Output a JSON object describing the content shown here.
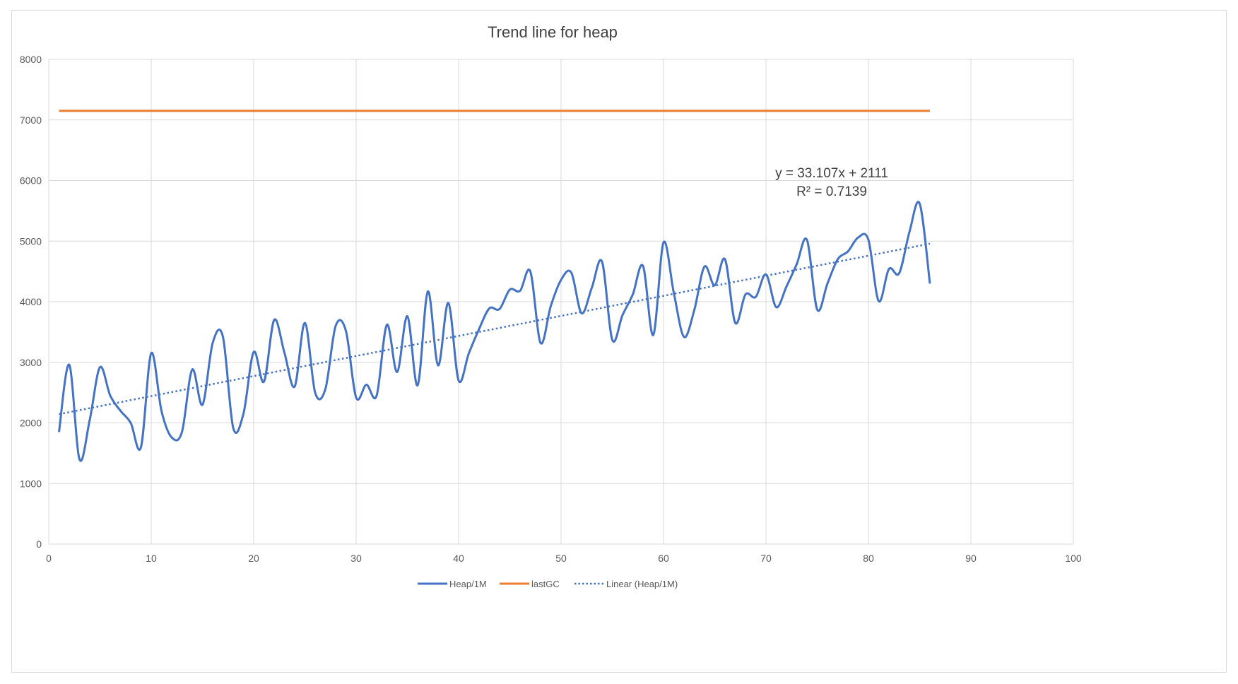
{
  "chart_data": {
    "type": "line",
    "title": "Trend line for heap",
    "xlabel": "",
    "ylabel": "",
    "xlim": [
      0,
      100
    ],
    "ylim": [
      0,
      8000
    ],
    "x_ticks": [
      0,
      10,
      20,
      30,
      40,
      50,
      60,
      70,
      80,
      90,
      100
    ],
    "y_ticks": [
      0,
      1000,
      2000,
      3000,
      4000,
      5000,
      6000,
      7000,
      8000
    ],
    "grid": true,
    "legend_position": "bottom",
    "colors": {
      "heap": "#4472c4",
      "lastgc": "#ed7d31",
      "linear": "#4472c4",
      "grid": "#d9d9d9"
    },
    "series": [
      {
        "name": "Heap/1M",
        "style": "smooth",
        "x": [
          1,
          2,
          3,
          4,
          5,
          6,
          7,
          8,
          9,
          10,
          11,
          12,
          13,
          14,
          15,
          16,
          17,
          18,
          19,
          20,
          21,
          22,
          23,
          24,
          25,
          26,
          27,
          28,
          29,
          30,
          31,
          32,
          33,
          34,
          35,
          36,
          37,
          38,
          39,
          40,
          41,
          42,
          43,
          44,
          45,
          46,
          47,
          48,
          49,
          50,
          51,
          52,
          53,
          54,
          55,
          56,
          57,
          58,
          59,
          60,
          61,
          62,
          63,
          64,
          65,
          66,
          67,
          68,
          69,
          70,
          71,
          72,
          73,
          74,
          75,
          76,
          77,
          78,
          79,
          80,
          81,
          82,
          83,
          84,
          85,
          86
        ],
        "y": [
          1850,
          2960,
          1400,
          2050,
          2920,
          2450,
          2200,
          2000,
          1600,
          3150,
          2200,
          1760,
          1850,
          2880,
          2300,
          3320,
          3420,
          1920,
          2150,
          3170,
          2680,
          3700,
          3160,
          2600,
          3650,
          2500,
          2560,
          3600,
          3520,
          2420,
          2630,
          2450,
          3620,
          2840,
          3760,
          2620,
          4170,
          2950,
          3980,
          2700,
          3150,
          3550,
          3890,
          3880,
          4200,
          4180,
          4500,
          3320,
          3930,
          4360,
          4480,
          3810,
          4230,
          4660,
          3370,
          3780,
          4120,
          4590,
          3450,
          4980,
          4150,
          3420,
          3860,
          4580,
          4270,
          4700,
          3650,
          4120,
          4080,
          4450,
          3910,
          4250,
          4620,
          5020,
          3870,
          4300,
          4700,
          4830,
          5060,
          5020,
          4010,
          4540,
          4470,
          5150,
          5620,
          4300
        ]
      },
      {
        "name": "lastGC",
        "style": "straight",
        "x": [
          1,
          86
        ],
        "y": [
          7150,
          7150
        ]
      },
      {
        "name": "Linear  (Heap/1M)",
        "style": "dotted",
        "x": [
          1,
          86
        ],
        "y": [
          2144.1,
          4958.2
        ]
      }
    ],
    "annotations": [
      "y = 33.107x + 2111",
      "R² = 0.7139"
    ]
  }
}
